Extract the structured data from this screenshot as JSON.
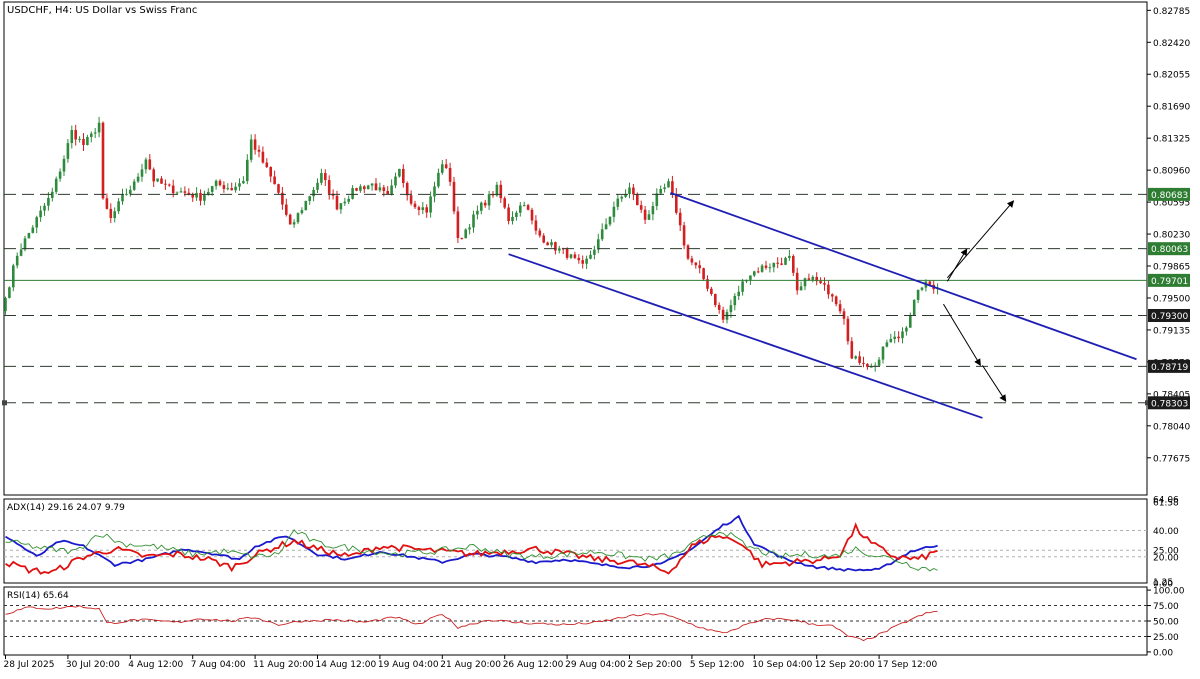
{
  "colors": {
    "bull": "#2e8b3d",
    "bear": "#d21f1f",
    "channel": "#1f1fb4",
    "level": "#2e7d32",
    "adx": "#1a1acc",
    "plus_di": "#e01010",
    "minus_di": "#2f8f2f",
    "rsi": "#c82222",
    "text": "#000000"
  },
  "chart_data": [
    {
      "name": "price",
      "type": "candlestick",
      "title": "USDCHF, H4:  US Dollar vs Swiss Franc",
      "symbol": "USDCHF",
      "timeframe": "H4",
      "description": "US Dollar vs Swiss Franc",
      "ylim": [
        0.7725,
        0.8288
      ],
      "y_ticks": [
        "0.82785",
        "0.82420",
        "0.82055",
        "0.81690",
        "0.81325",
        "0.80960",
        "0.80595",
        "0.80230",
        "0.79865",
        "0.79500",
        "0.79135",
        "0.78770",
        "0.78405",
        "0.78040",
        "0.77675"
      ],
      "x_ticks": [
        "28 Jul 2025",
        "30 Jul 20:00",
        "4 Aug 12:00",
        "7 Aug 04:00",
        "11 Aug 20:00",
        "14 Aug 12:00",
        "19 Aug 04:00",
        "21 Aug 20:00",
        "26 Aug 12:00",
        "29 Aug 04:00",
        "2 Sep 20:00",
        "5 Sep 12:00",
        "10 Sep 04:00",
        "12 Sep 20:00",
        "17 Sep 12:00"
      ],
      "x_tick_bars": [
        0,
        16,
        32,
        48,
        64,
        80,
        96,
        112,
        128,
        144,
        160,
        176,
        192,
        208,
        224
      ],
      "bars": 240,
      "close_path": [
        [
          0,
          0.795
        ],
        [
          3,
          0.8
        ],
        [
          8,
          0.804
        ],
        [
          12,
          0.807
        ],
        [
          15,
          0.811
        ],
        [
          17,
          0.814
        ],
        [
          20,
          0.8125
        ],
        [
          22,
          0.8135
        ],
        [
          24,
          0.815
        ],
        [
          25,
          0.806
        ],
        [
          27,
          0.804
        ],
        [
          30,
          0.8065
        ],
        [
          33,
          0.808
        ],
        [
          36,
          0.811
        ],
        [
          38,
          0.8085
        ],
        [
          42,
          0.8075
        ],
        [
          46,
          0.807
        ],
        [
          50,
          0.8065
        ],
        [
          54,
          0.808
        ],
        [
          58,
          0.8075
        ],
        [
          61,
          0.8085
        ],
        [
          63,
          0.813
        ],
        [
          66,
          0.8105
        ],
        [
          70,
          0.807
        ],
        [
          73,
          0.803
        ],
        [
          77,
          0.806
        ],
        [
          81,
          0.809
        ],
        [
          85,
          0.8055
        ],
        [
          90,
          0.8075
        ],
        [
          94,
          0.808
        ],
        [
          98,
          0.8065
        ],
        [
          101,
          0.8095
        ],
        [
          104,
          0.806
        ],
        [
          108,
          0.805
        ],
        [
          112,
          0.8105
        ],
        [
          114,
          0.8085
        ],
        [
          116,
          0.8015
        ],
        [
          119,
          0.8035
        ],
        [
          122,
          0.8055
        ],
        [
          126,
          0.8075
        ],
        [
          129,
          0.804
        ],
        [
          133,
          0.806
        ],
        [
          136,
          0.8025
        ],
        [
          140,
          0.801
        ],
        [
          144,
          0.8
        ],
        [
          148,
          0.7985
        ],
        [
          152,
          0.8015
        ],
        [
          156,
          0.8055
        ],
        [
          160,
          0.8075
        ],
        [
          164,
          0.804
        ],
        [
          167,
          0.8065
        ],
        [
          170,
          0.808
        ],
        [
          172,
          0.805
        ],
        [
          175,
          0.7995
        ],
        [
          178,
          0.798
        ],
        [
          181,
          0.7955
        ],
        [
          184,
          0.7925
        ],
        [
          187,
          0.795
        ],
        [
          190,
          0.7975
        ],
        [
          194,
          0.7985
        ],
        [
          198,
          0.799
        ],
        [
          201,
          0.7995
        ],
        [
          203,
          0.7955
        ],
        [
          206,
          0.7975
        ],
        [
          209,
          0.7965
        ],
        [
          212,
          0.7955
        ],
        [
          215,
          0.793
        ],
        [
          217,
          0.788
        ],
        [
          220,
          0.7878
        ],
        [
          222,
          0.787
        ],
        [
          224,
          0.788
        ],
        [
          226,
          0.79
        ],
        [
          229,
          0.7905
        ],
        [
          231,
          0.792
        ],
        [
          233,
          0.7945
        ],
        [
          235,
          0.7965
        ],
        [
          237,
          0.7965
        ],
        [
          239,
          0.7962
        ]
      ],
      "levels": [
        {
          "value": 0.80683,
          "label": "0.80683"
        },
        {
          "value": 0.80063,
          "label": "0.80063"
        },
        {
          "value": 0.79701,
          "label": "0.79701"
        },
        {
          "value": 0.793,
          "label": "0.79300"
        },
        {
          "value": 0.78719,
          "label": "0.78719"
        },
        {
          "value": 0.78303,
          "label": "0.78303"
        }
      ],
      "channel": {
        "upper": [
          [
            170.5,
            0.807
          ],
          [
            290,
            0.788
          ]
        ],
        "lower": [
          [
            129,
            0.8
          ],
          [
            250.5,
            0.7813
          ]
        ]
      },
      "arrows": [
        {
          "from": [
            241.5,
            0.7973
          ],
          "to": [
            258.5,
            0.8061
          ]
        },
        {
          "from": [
            241.5,
            0.7969
          ],
          "to": [
            246.5,
            0.8006
          ]
        },
        {
          "from": [
            240.5,
            0.7943
          ],
          "to": [
            250,
            0.7873
          ]
        },
        {
          "from": [
            250.5,
            0.7873
          ],
          "to": [
            256.5,
            0.7832
          ]
        }
      ]
    },
    {
      "name": "adx",
      "type": "line",
      "label": "ADX(14) 29.16 24.07 9.79",
      "ylim": [
        0,
        64
      ],
      "y_ticks": [
        "64.06",
        "61.58",
        "40.00",
        "25.00",
        "20.00",
        "1.25",
        "0.00"
      ],
      "y_tick_values": [
        64.06,
        61.58,
        40,
        25,
        20,
        1.25,
        0
      ],
      "grid_values": [
        40,
        25,
        20
      ],
      "series": [
        {
          "key": "adx",
          "path": [
            [
              0,
              36
            ],
            [
              8,
              20
            ],
            [
              14,
              32
            ],
            [
              20,
              28
            ],
            [
              28,
              14
            ],
            [
              36,
              18
            ],
            [
              46,
              26
            ],
            [
              54,
              22
            ],
            [
              60,
              18
            ],
            [
              64,
              28
            ],
            [
              72,
              36
            ],
            [
              80,
              22
            ],
            [
              88,
              18
            ],
            [
              96,
              24
            ],
            [
              104,
              20
            ],
            [
              112,
              16
            ],
            [
              120,
              22
            ],
            [
              128,
              20
            ],
            [
              136,
              16
            ],
            [
              144,
              18
            ],
            [
              152,
              14
            ],
            [
              160,
              12
            ],
            [
              168,
              14
            ],
            [
              176,
              26
            ],
            [
              184,
              44
            ],
            [
              188,
              50
            ],
            [
              192,
              30
            ],
            [
              200,
              18
            ],
            [
              208,
              12
            ],
            [
              216,
              10
            ],
            [
              224,
              10
            ],
            [
              232,
              24
            ],
            [
              239,
              29
            ]
          ],
          "amp": 2
        },
        {
          "key": "plus_di",
          "path": [
            [
              0,
              16
            ],
            [
              6,
              10
            ],
            [
              12,
              8
            ],
            [
              20,
              20
            ],
            [
              28,
              26
            ],
            [
              36,
              20
            ],
            [
              44,
              22
            ],
            [
              52,
              18
            ],
            [
              58,
              12
            ],
            [
              66,
              24
            ],
            [
              74,
              32
            ],
            [
              80,
              26
            ],
            [
              88,
              20
            ],
            [
              96,
              28
            ],
            [
              104,
              26
            ],
            [
              112,
              24
            ],
            [
              120,
              22
            ],
            [
              128,
              24
            ],
            [
              136,
              26
            ],
            [
              144,
              22
            ],
            [
              152,
              18
            ],
            [
              160,
              16
            ],
            [
              166,
              12
            ],
            [
              170,
              8
            ],
            [
              176,
              28
            ],
            [
              182,
              36
            ],
            [
              188,
              32
            ],
            [
              194,
              14
            ],
            [
              202,
              16
            ],
            [
              210,
              18
            ],
            [
              214,
              22
            ],
            [
              218,
              42
            ],
            [
              222,
              30
            ],
            [
              228,
              20
            ],
            [
              234,
              18
            ],
            [
              239,
              24
            ]
          ],
          "amp": 5
        },
        {
          "key": "minus_di",
          "path": [
            [
              0,
              32
            ],
            [
              10,
              26
            ],
            [
              18,
              24
            ],
            [
              24,
              38
            ],
            [
              30,
              30
            ],
            [
              38,
              28
            ],
            [
              48,
              22
            ],
            [
              56,
              24
            ],
            [
              64,
              20
            ],
            [
              70,
              22
            ],
            [
              74,
              40
            ],
            [
              80,
              30
            ],
            [
              90,
              26
            ],
            [
              100,
              22
            ],
            [
              110,
              24
            ],
            [
              120,
              28
            ],
            [
              128,
              22
            ],
            [
              136,
              20
            ],
            [
              144,
              22
            ],
            [
              152,
              24
            ],
            [
              160,
              20
            ],
            [
              166,
              18
            ],
            [
              172,
              22
            ],
            [
              180,
              36
            ],
            [
              184,
              40
            ],
            [
              190,
              28
            ],
            [
              198,
              20
            ],
            [
              206,
              22
            ],
            [
              212,
              20
            ],
            [
              218,
              26
            ],
            [
              222,
              22
            ],
            [
              228,
              18
            ],
            [
              234,
              12
            ],
            [
              239,
              10
            ]
          ],
          "amp": 5
        }
      ]
    },
    {
      "name": "rsi",
      "type": "line",
      "label": "RSI(14) 65.64",
      "ylim": [
        -5,
        105
      ],
      "y_ticks": [
        "100.00",
        "75.00",
        "50.00",
        "25.00",
        "0.00"
      ],
      "y_tick_values": [
        100,
        75,
        50,
        25,
        0
      ],
      "grid_values": [
        75,
        50,
        25
      ],
      "series": [
        {
          "key": "rsi",
          "path": [
            [
              0,
              62
            ],
            [
              6,
              72
            ],
            [
              12,
              70
            ],
            [
              18,
              74
            ],
            [
              24,
              70
            ],
            [
              26,
              46
            ],
            [
              34,
              52
            ],
            [
              44,
              48
            ],
            [
              50,
              54
            ],
            [
              58,
              50
            ],
            [
              64,
              56
            ],
            [
              70,
              44
            ],
            [
              76,
              50
            ],
            [
              84,
              52
            ],
            [
              92,
              48
            ],
            [
              100,
              56
            ],
            [
              106,
              44
            ],
            [
              112,
              62
            ],
            [
              116,
              40
            ],
            [
              124,
              52
            ],
            [
              130,
              48
            ],
            [
              136,
              46
            ],
            [
              144,
              44
            ],
            [
              152,
              48
            ],
            [
              160,
              58
            ],
            [
              168,
              62
            ],
            [
              172,
              54
            ],
            [
              178,
              40
            ],
            [
              184,
              30
            ],
            [
              190,
              44
            ],
            [
              196,
              54
            ],
            [
              202,
              52
            ],
            [
              206,
              46
            ],
            [
              212,
              42
            ],
            [
              216,
              26
            ],
            [
              220,
              18
            ],
            [
              224,
              28
            ],
            [
              228,
              40
            ],
            [
              232,
              52
            ],
            [
              236,
              62
            ],
            [
              239,
              65.6
            ]
          ],
          "amp": 4
        }
      ]
    }
  ]
}
